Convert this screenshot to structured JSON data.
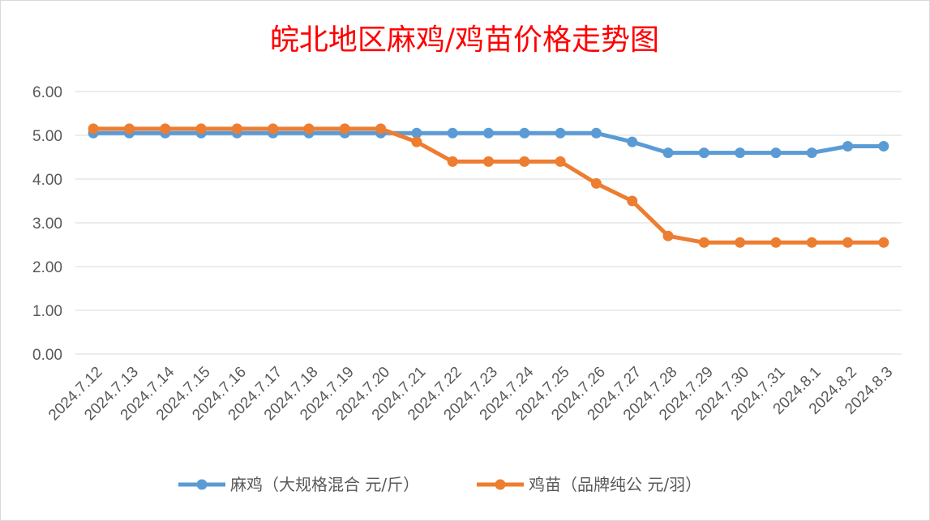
{
  "chart_data": {
    "type": "line",
    "title": "皖北地区麻鸡/鸡苗价格走势图",
    "categories": [
      "2024.7.12",
      "2024.7.13",
      "2024.7.14",
      "2024.7.15",
      "2024.7.16",
      "2024.7.17",
      "2024.7.18",
      "2024.7.19",
      "2024.7.20",
      "2024.7.21",
      "2024.7.22",
      "2024.7.23",
      "2024.7.24",
      "2024.7.25",
      "2024.7.26",
      "2024.7.27",
      "2024.7.28",
      "2024.7.29",
      "2024.7.30",
      "2024.7.31",
      "2024.8.1",
      "2024.8.2",
      "2024.8.3"
    ],
    "series": [
      {
        "name": "麻鸡（大规格混合 元/斤）",
        "color": "#5b9bd5",
        "values": [
          5.05,
          5.05,
          5.05,
          5.05,
          5.05,
          5.05,
          5.05,
          5.05,
          5.05,
          5.05,
          5.05,
          5.05,
          5.05,
          5.05,
          5.05,
          4.85,
          4.6,
          4.6,
          4.6,
          4.6,
          4.6,
          4.75,
          4.75
        ]
      },
      {
        "name": "鸡苗（品牌纯公 元/羽）",
        "color": "#ed7d31",
        "values": [
          5.15,
          5.15,
          5.15,
          5.15,
          5.15,
          5.15,
          5.15,
          5.15,
          5.15,
          4.85,
          4.4,
          4.4,
          4.4,
          4.4,
          3.9,
          3.5,
          2.7,
          2.55,
          2.55,
          2.55,
          2.55,
          2.55,
          2.55
        ]
      }
    ],
    "ylim": [
      0,
      6
    ],
    "yticks": [
      "0.00",
      "1.00",
      "2.00",
      "3.00",
      "4.00",
      "5.00",
      "6.00"
    ],
    "grid": true,
    "legend": "bottom"
  }
}
